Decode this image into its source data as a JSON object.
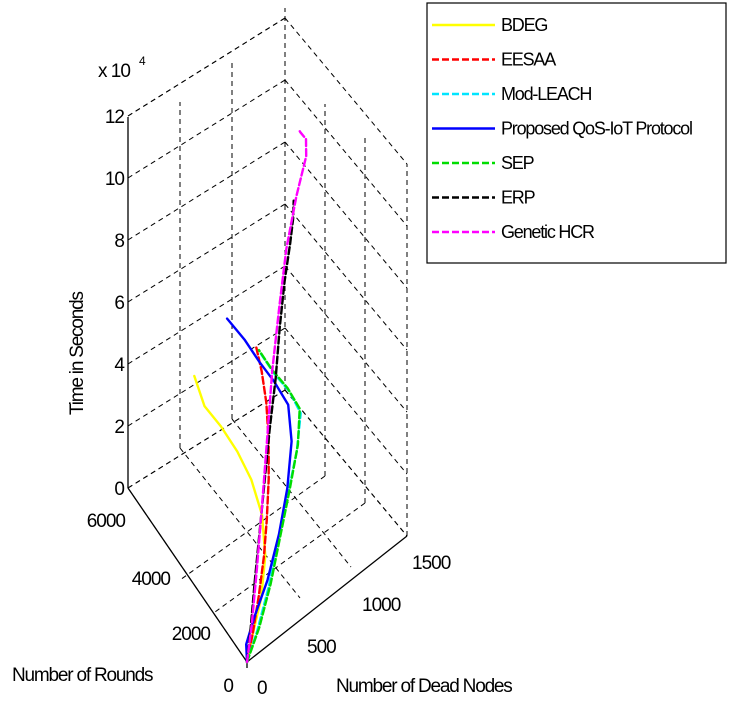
{
  "chart_data": {
    "type": "line",
    "view": "3d",
    "xlabel": "Number of Dead Nodes",
    "ylabel": "Number of Rounds",
    "zlabel": "Time in Seconds",
    "z_exponent_label": "x 10",
    "z_exponent_power": "4",
    "x_ticks": [
      "0",
      "500",
      "1000",
      "1500"
    ],
    "y_ticks": [
      "0",
      "2000",
      "4000",
      "6000"
    ],
    "z_ticks": [
      "0",
      "2",
      "4",
      "6",
      "8",
      "10",
      "12"
    ],
    "xlim": [
      0,
      1500
    ],
    "ylim": [
      0,
      6000
    ],
    "zlim": [
      0,
      12
    ],
    "grid": true,
    "legend_position": "top-right",
    "series": [
      {
        "name": "BDEG",
        "color": "#ffff00",
        "dash": "solid",
        "points": [
          [
            0,
            0,
            0
          ],
          [
            100,
            300,
            0.2
          ],
          [
            300,
            900,
            0.4
          ],
          [
            450,
            1500,
            0.8
          ],
          [
            550,
            2200,
            1.2
          ],
          [
            580,
            2900,
            1.6
          ],
          [
            560,
            3500,
            2.0
          ],
          [
            500,
            4000,
            2.5
          ],
          [
            420,
            4400,
            3.0
          ],
          [
            380,
            4700,
            3.8
          ]
        ]
      },
      {
        "name": "EESAA",
        "color": "#ff0000",
        "dash": "dashed",
        "points": [
          [
            0,
            0,
            0
          ],
          [
            120,
            350,
            0.3
          ],
          [
            260,
            800,
            0.7
          ],
          [
            400,
            1300,
            1.1
          ],
          [
            520,
            1800,
            1.5
          ],
          [
            650,
            2400,
            1.9
          ],
          [
            760,
            3000,
            2.3
          ],
          [
            850,
            3600,
            2.7
          ],
          [
            900,
            4100,
            3.1
          ],
          [
            920,
            4500,
            3.5
          ]
        ]
      },
      {
        "name": "Mod-LEACH",
        "color": "#00e5ff",
        "dash": "dashed",
        "points": [
          [
            0,
            0,
            0
          ],
          [
            150,
            300,
            0.3
          ],
          [
            350,
            800,
            0.7
          ],
          [
            550,
            1400,
            1.0
          ],
          [
            750,
            2000,
            1.4
          ],
          [
            950,
            2600,
            1.8
          ],
          [
            1080,
            3100,
            2.2
          ],
          [
            1050,
            3500,
            2.6
          ],
          [
            980,
            3900,
            3.0
          ],
          [
            930,
            4300,
            3.4
          ]
        ]
      },
      {
        "name": "Proposed QoS-IoT Protocol",
        "color": "#0000ff",
        "dash": "solid",
        "points": [
          [
            0,
            0,
            0
          ],
          [
            30,
            200,
            0.3
          ],
          [
            150,
            450,
            0.6
          ],
          [
            350,
            850,
            0.9
          ],
          [
            560,
            1400,
            1.3
          ],
          [
            750,
            2000,
            1.7
          ],
          [
            920,
            2700,
            2.1
          ],
          [
            1000,
            3300,
            2.5
          ],
          [
            960,
            3800,
            2.9
          ],
          [
            900,
            4200,
            3.3
          ],
          [
            850,
            4700,
            3.7
          ],
          [
            780,
            5200,
            4.1
          ]
        ]
      },
      {
        "name": "SEP",
        "color": "#00dd00",
        "dash": "dashed",
        "points": [
          [
            0,
            0,
            0
          ],
          [
            180,
            350,
            0.3
          ],
          [
            380,
            850,
            0.7
          ],
          [
            580,
            1450,
            1.1
          ],
          [
            780,
            2050,
            1.5
          ],
          [
            970,
            2650,
            1.9
          ],
          [
            1080,
            3150,
            2.3
          ],
          [
            1040,
            3550,
            2.7
          ],
          [
            970,
            3950,
            3.1
          ],
          [
            920,
            4350,
            3.5
          ]
        ]
      },
      {
        "name": "ERP",
        "color": "#000000",
        "dash": "dashed",
        "points": [
          [
            0,
            0,
            0
          ],
          [
            100,
            350,
            0.5
          ],
          [
            220,
            800,
            1.2
          ],
          [
            360,
            1300,
            2.0
          ],
          [
            500,
            1800,
            2.8
          ],
          [
            640,
            2300,
            3.6
          ],
          [
            790,
            2800,
            4.4
          ],
          [
            920,
            3300,
            5.2
          ],
          [
            1040,
            3700,
            6.0
          ],
          [
            1130,
            3900,
            6.8
          ],
          [
            1120,
            3700,
            7.8
          ],
          [
            1070,
            3400,
            8.8
          ]
        ]
      },
      {
        "name": "Genetic HCR",
        "color": "#ff00ff",
        "dash": "dashed",
        "points": [
          [
            0,
            0,
            0
          ],
          [
            110,
            350,
            0.6
          ],
          [
            250,
            850,
            1.5
          ],
          [
            400,
            1400,
            2.6
          ],
          [
            560,
            2000,
            3.8
          ],
          [
            720,
            2600,
            5.0
          ],
          [
            880,
            3100,
            6.2
          ],
          [
            1020,
            3500,
            7.3
          ],
          [
            1170,
            3800,
            8.3
          ],
          [
            1280,
            3900,
            9.2
          ],
          [
            1260,
            3800,
            9.9
          ],
          [
            1150,
            3500,
            10.7
          ],
          [
            1100,
            3300,
            11.1
          ]
        ]
      }
    ]
  }
}
